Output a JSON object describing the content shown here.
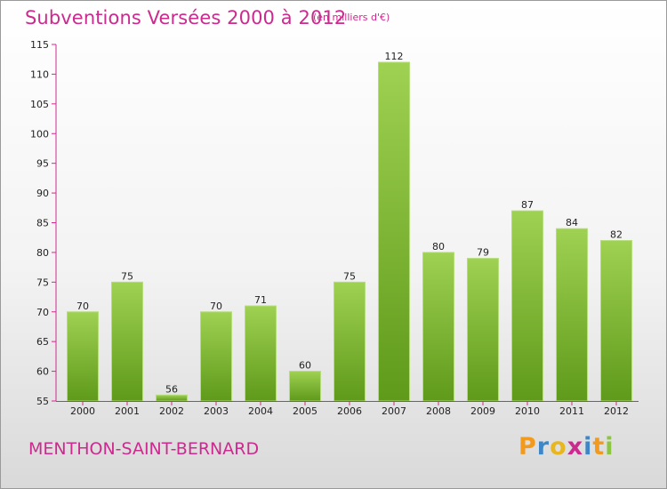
{
  "header": {
    "title": "Subventions Versées 2000 à 2012",
    "unit": "(en milliers d'€)"
  },
  "footer": {
    "commune": "MENTHON-SAINT-BERNARD",
    "logo": "Proxiti"
  },
  "colors": {
    "title": "#cc2a8e",
    "bar_top": "#9fd152",
    "bar_bottom": "#5f9a1a",
    "logo_letters": [
      "#f29a1e",
      "#3d87c8",
      "#e8b61e",
      "#cc2a8e",
      "#3d87c8",
      "#f29a1e",
      "#8cc63f"
    ]
  },
  "chart_data": {
    "type": "bar",
    "title": "Subventions Versées 2000 à 2012",
    "ylabel": "",
    "xlabel": "",
    "categories": [
      "2000",
      "2001",
      "2002",
      "2003",
      "2004",
      "2005",
      "2006",
      "2007",
      "2008",
      "2009",
      "2010",
      "2011",
      "2012"
    ],
    "values": [
      70,
      75,
      56,
      70,
      71,
      60,
      75,
      112,
      80,
      79,
      87,
      84,
      82
    ],
    "ylim": [
      55,
      115
    ],
    "yticks": [
      55,
      60,
      65,
      70,
      75,
      80,
      85,
      90,
      95,
      100,
      105,
      110,
      115
    ],
    "grid": false,
    "legend": "none"
  }
}
